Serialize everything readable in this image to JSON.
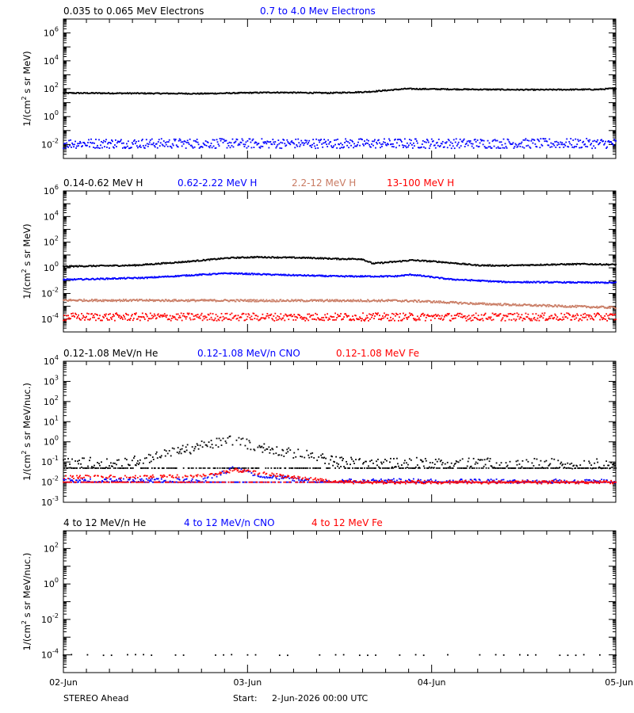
{
  "chart_data": [
    {
      "type": "scatter",
      "panel": "electrons",
      "y_scale": "log",
      "ylim": [
        0.001,
        10000000
      ],
      "y_ticks": [
        {
          "base": "10",
          "exp": "-2",
          "value": 0.01
        },
        {
          "base": "10",
          "exp": "0",
          "value": 1
        },
        {
          "base": "10",
          "exp": "2",
          "value": 100
        },
        {
          "base": "10",
          "exp": "4",
          "value": 10000
        },
        {
          "base": "10",
          "exp": "6",
          "value": 1000000
        }
      ],
      "ylabel_prefix": "1/(cm",
      "ylabel_sup": "2",
      "ylabel_suffix": " s sr MeV)",
      "series": [
        {
          "name": "0.035 to 0.065 MeV Electrons",
          "color": "#000000",
          "profile": [
            [
              0,
              50
            ],
            [
              0.25,
              45
            ],
            [
              0.38,
              55
            ],
            [
              0.48,
              50
            ],
            [
              0.55,
              60
            ],
            [
              0.62,
              100
            ],
            [
              0.67,
              95
            ],
            [
              0.75,
              90
            ],
            [
              0.85,
              85
            ],
            [
              0.97,
              90
            ],
            [
              1,
              110
            ]
          ],
          "scatter_dex": 0.04
        },
        {
          "name": "0.7 to 4.0 Mev Electrons",
          "color": "#0000ff",
          "profile": [
            [
              0,
              0.012
            ],
            [
              0.5,
              0.012
            ],
            [
              1,
              0.012
            ]
          ],
          "scatter_dex": 0.35
        }
      ]
    },
    {
      "type": "scatter",
      "panel": "protons",
      "y_scale": "log",
      "ylim": [
        1e-05,
        1000000
      ],
      "y_ticks": [
        {
          "base": "10",
          "exp": "-4",
          "value": 0.0001
        },
        {
          "base": "10",
          "exp": "-2",
          "value": 0.01
        },
        {
          "base": "10",
          "exp": "0",
          "value": 1
        },
        {
          "base": "10",
          "exp": "2",
          "value": 100
        },
        {
          "base": "10",
          "exp": "4",
          "value": 10000
        },
        {
          "base": "10",
          "exp": "6",
          "value": 1000000
        }
      ],
      "ylabel_prefix": "1/(cm",
      "ylabel_sup": "2",
      "ylabel_suffix": " s sr MeV)",
      "series": [
        {
          "name": "0.14-0.62 MeV H",
          "color": "#000000",
          "profile": [
            [
              0,
              1.3
            ],
            [
              0.13,
              1.6
            ],
            [
              0.22,
              3
            ],
            [
              0.3,
              6
            ],
            [
              0.35,
              7
            ],
            [
              0.45,
              6
            ],
            [
              0.5,
              5
            ],
            [
              0.54,
              5
            ],
            [
              0.56,
              2.2
            ],
            [
              0.6,
              3
            ],
            [
              0.63,
              4
            ],
            [
              0.68,
              3
            ],
            [
              0.75,
              1.6
            ],
            [
              0.8,
              1.5
            ],
            [
              0.87,
              1.8
            ],
            [
              0.94,
              2
            ],
            [
              1,
              1.8
            ]
          ],
          "scatter_dex": 0.05
        },
        {
          "name": "0.62-2.22 MeV H",
          "color": "#0000ff",
          "profile": [
            [
              0,
              0.12
            ],
            [
              0.15,
              0.17
            ],
            [
              0.25,
              0.3
            ],
            [
              0.3,
              0.38
            ],
            [
              0.4,
              0.28
            ],
            [
              0.5,
              0.22
            ],
            [
              0.6,
              0.22
            ],
            [
              0.63,
              0.3
            ],
            [
              0.7,
              0.13
            ],
            [
              0.8,
              0.08
            ],
            [
              1,
              0.07
            ]
          ],
          "scatter_dex": 0.05
        },
        {
          "name": "2.2-12 MeV H",
          "color": "#c97b63",
          "profile": [
            [
              0,
              0.003
            ],
            [
              0.4,
              0.0028
            ],
            [
              0.6,
              0.0028
            ],
            [
              0.65,
              0.0025
            ],
            [
              0.75,
              0.0016
            ],
            [
              0.85,
              0.0012
            ],
            [
              1,
              0.0008
            ]
          ],
          "scatter_dex": 0.08
        },
        {
          "name": "13-100 MeV H",
          "color": "#ff0000",
          "profile": [
            [
              0,
              0.00015
            ],
            [
              1,
              0.00015
            ]
          ],
          "scatter_dex": 0.3
        }
      ]
    },
    {
      "type": "scatter",
      "panel": "heavy_ions_low",
      "y_scale": "log",
      "ylim": [
        0.001,
        10000
      ],
      "y_ticks": [
        {
          "base": "10",
          "exp": "-3",
          "value": 0.001
        },
        {
          "base": "10",
          "exp": "-2",
          "value": 0.01
        },
        {
          "base": "10",
          "exp": "-1",
          "value": 0.1
        },
        {
          "base": "10",
          "exp": "0",
          "value": 1
        },
        {
          "base": "10",
          "exp": "1",
          "value": 10
        },
        {
          "base": "10",
          "exp": "2",
          "value": 100
        },
        {
          "base": "10",
          "exp": "3",
          "value": 1000
        },
        {
          "base": "10",
          "exp": "4",
          "value": 10000
        }
      ],
      "ylabel_prefix": "1/(cm",
      "ylabel_sup": "2",
      "ylabel_suffix": " s sr MeV/nuc.)",
      "series": [
        {
          "name": "0.12-1.08 MeV/n He",
          "color": "#000000",
          "floor": 0.05,
          "profile": [
            [
              0,
              0.09
            ],
            [
              0.12,
              0.1
            ],
            [
              0.2,
              0.3
            ],
            [
              0.27,
              0.8
            ],
            [
              0.3,
              1.3
            ],
            [
              0.35,
              0.6
            ],
            [
              0.4,
              0.3
            ],
            [
              0.45,
              0.2
            ],
            [
              0.5,
              0.1
            ],
            [
              1,
              0.08
            ]
          ],
          "scatter_dex": 0.25
        },
        {
          "name": "0.12-1.08 MeV/n CNO",
          "color": "#0000ff",
          "floor": 0.01,
          "profile": [
            [
              0,
              0.012
            ],
            [
              0.25,
              0.012
            ],
            [
              0.31,
              0.05
            ],
            [
              0.36,
              0.02
            ],
            [
              0.45,
              0.012
            ],
            [
              1,
              0.011
            ]
          ],
          "scatter_dex": 0.1
        },
        {
          "name": "0.12-1.08 MeV Fe",
          "color": "#ff0000",
          "floor": 0.01,
          "profile": [
            [
              0,
              0.018
            ],
            [
              0.25,
              0.02
            ],
            [
              0.31,
              0.04
            ],
            [
              0.4,
              0.02
            ],
            [
              0.5,
              0.01
            ],
            [
              1,
              0.01
            ]
          ],
          "scatter_dex": 0.08
        }
      ]
    },
    {
      "type": "scatter",
      "panel": "heavy_ions_high",
      "y_scale": "log",
      "ylim": [
        1e-05,
        1000
      ],
      "y_ticks": [
        {
          "base": "10",
          "exp": "-4",
          "value": 0.0001
        },
        {
          "base": "10",
          "exp": "-2",
          "value": 0.01
        },
        {
          "base": "10",
          "exp": "0",
          "value": 1
        },
        {
          "base": "10",
          "exp": "2",
          "value": 100
        }
      ],
      "ylabel_prefix": "1/(cm",
      "ylabel_sup": "2",
      "ylabel_suffix": " s sr MeV/nuc.)",
      "series": [
        {
          "name": "4 to 12 MeV/n He",
          "color": "#000000",
          "profile": [
            [
              0,
              0.0001
            ],
            [
              1,
              0.0001
            ]
          ],
          "scatter_dex": 0.02,
          "sparse": true
        },
        {
          "name": "4 to 12 MeV/n CNO",
          "color": "#0000ff",
          "profile": [],
          "scatter_dex": 0
        },
        {
          "name": "4 to 12 MeV Fe",
          "color": "#ff0000",
          "profile": [],
          "scatter_dex": 0
        }
      ]
    }
  ],
  "x_axis": {
    "tick_labels": [
      "02-Jun",
      "03-Jun",
      "04-Jun",
      "05-Jun"
    ],
    "xlim_days": [
      0,
      3
    ]
  },
  "footer": {
    "spacecraft": "STEREO Ahead",
    "start_label": "Start:",
    "start_value": "2-Jun-2026 00:00 UTC"
  }
}
